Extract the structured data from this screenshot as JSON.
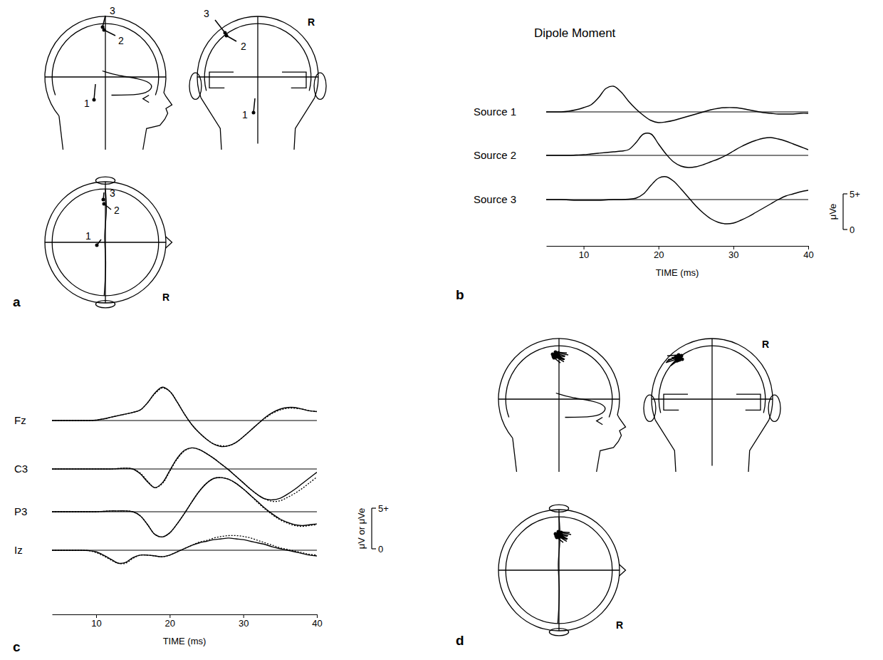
{
  "chart_data": [
    {
      "type": "line",
      "panel_label": "b",
      "title": "Dipole Moment",
      "x_label": "TIME (ms)",
      "x": [
        5,
        6,
        7,
        8,
        9,
        10,
        11,
        12,
        13,
        14,
        15,
        16,
        17,
        18,
        19,
        20,
        21,
        22,
        23,
        24,
        25,
        26,
        27,
        28,
        29,
        30,
        31,
        32,
        33,
        34,
        35,
        36,
        37,
        38,
        39,
        40
      ],
      "xlim": [
        5,
        40
      ],
      "xticks": [
        10,
        20,
        30,
        40
      ],
      "scale_bar": {
        "label": "μVe",
        "ticks": [
          0,
          {
            "value": 5,
            "label": "5+"
          }
        ]
      },
      "series": [
        {
          "name": "Source 1",
          "values": [
            0,
            0,
            0,
            0.1,
            0.3,
            0.6,
            1.0,
            2.0,
            3.3,
            3.6,
            2.8,
            1.5,
            0.4,
            -0.5,
            -1.2,
            -1.5,
            -1.4,
            -1.2,
            -0.9,
            -0.6,
            -0.3,
            0,
            0.3,
            0.5,
            0.6,
            0.6,
            0.5,
            0.3,
            0.1,
            -0.1,
            -0.2,
            -0.3,
            -0.3,
            -0.3,
            -0.2,
            -0.2
          ]
        },
        {
          "name": "Source 2",
          "values": [
            0,
            0,
            0,
            0,
            0.05,
            0.1,
            0.2,
            0.3,
            0.4,
            0.5,
            0.6,
            0.8,
            1.8,
            3.0,
            3.0,
            1.6,
            0.2,
            -0.9,
            -1.5,
            -1.7,
            -1.6,
            -1.3,
            -0.9,
            -0.5,
            0,
            0.6,
            1.2,
            1.7,
            2.1,
            2.4,
            2.5,
            2.3,
            2.0,
            1.6,
            1.2,
            0.8
          ]
        },
        {
          "name": "Source 3",
          "values": [
            0,
            0,
            0,
            -0.05,
            -0.1,
            -0.1,
            -0.1,
            -0.1,
            -0.05,
            0,
            0,
            0.05,
            0.2,
            0.8,
            2.0,
            3.0,
            3.2,
            2.6,
            1.5,
            0.3,
            -0.9,
            -1.9,
            -2.7,
            -3.2,
            -3.4,
            -3.3,
            -2.9,
            -2.4,
            -1.8,
            -1.2,
            -0.6,
            0,
            0.5,
            0.8,
            1.1,
            1.3
          ]
        }
      ]
    },
    {
      "type": "line",
      "panel_label": "c",
      "x_label": "TIME (ms)",
      "x": [
        4,
        5,
        6,
        7,
        8,
        9,
        10,
        11,
        12,
        13,
        14,
        15,
        16,
        17,
        18,
        19,
        20,
        21,
        22,
        23,
        24,
        25,
        26,
        27,
        28,
        29,
        30,
        31,
        32,
        33,
        34,
        35,
        36,
        37,
        38,
        39,
        40
      ],
      "xlim": [
        4,
        40
      ],
      "xticks": [
        10,
        20,
        30,
        40
      ],
      "scale_bar": {
        "label": "μV or μVe",
        "ticks": [
          0,
          {
            "value": 5,
            "label": "5+"
          }
        ]
      },
      "series": [
        {
          "name": "Fz",
          "values": [
            0,
            0,
            0,
            0,
            0,
            0,
            0.05,
            0.2,
            0.4,
            0.6,
            0.8,
            1.0,
            1.3,
            2.2,
            3.4,
            4.1,
            3.6,
            2.3,
            0.8,
            -0.5,
            -1.5,
            -2.3,
            -2.9,
            -3.2,
            -3.1,
            -2.7,
            -2.0,
            -1.2,
            -0.4,
            0.4,
            1.0,
            1.4,
            1.6,
            1.6,
            1.4,
            1.2,
            1.1
          ],
          "fit_values": [
            0,
            0,
            0,
            0,
            0,
            0,
            0.05,
            0.2,
            0.4,
            0.6,
            0.8,
            1.0,
            1.3,
            2.2,
            3.3,
            4.0,
            3.6,
            2.3,
            0.8,
            -0.5,
            -1.5,
            -2.3,
            -2.9,
            -3.1,
            -3.1,
            -2.7,
            -2.0,
            -1.2,
            -0.4,
            0.3,
            0.9,
            1.3,
            1.5,
            1.5,
            1.4,
            1.2,
            1.1
          ]
        },
        {
          "name": "C3",
          "values": [
            0,
            0,
            0,
            0,
            0,
            0,
            0,
            0,
            0,
            0.05,
            0.1,
            0,
            -0.6,
            -1.6,
            -2.3,
            -1.7,
            -0.2,
            1.3,
            2.3,
            2.6,
            2.4,
            1.9,
            1.3,
            0.6,
            -0.1,
            -0.9,
            -1.7,
            -2.5,
            -3.2,
            -3.7,
            -3.8,
            -3.6,
            -3.1,
            -2.5,
            -1.8,
            -1.1,
            -0.4
          ],
          "fit_values": [
            0,
            0,
            0,
            0,
            0,
            0,
            0,
            0,
            0,
            0.05,
            0.1,
            0,
            -0.5,
            -1.5,
            -2.3,
            -1.8,
            -0.3,
            1.2,
            2.2,
            2.6,
            2.4,
            1.9,
            1.3,
            0.6,
            -0.1,
            -0.9,
            -1.7,
            -2.5,
            -3.2,
            -3.7,
            -4.0,
            -3.9,
            -3.5,
            -3.0,
            -2.4,
            -1.7,
            -1.0
          ]
        },
        {
          "name": "P3",
          "values": [
            0,
            0,
            0,
            0,
            0,
            0,
            0,
            0.05,
            0.1,
            0.1,
            0.1,
            0,
            -0.5,
            -1.6,
            -2.8,
            -3.1,
            -2.6,
            -1.5,
            -0.2,
            1.2,
            2.5,
            3.5,
            4.1,
            4.2,
            4.0,
            3.5,
            2.8,
            2.0,
            1.2,
            0.4,
            -0.3,
            -0.9,
            -1.3,
            -1.6,
            -1.7,
            -1.6,
            -1.5
          ],
          "fit_values": [
            0,
            0,
            0,
            0,
            0,
            0,
            0,
            0.05,
            0.1,
            0.1,
            0.1,
            0,
            -0.5,
            -1.6,
            -2.8,
            -3.1,
            -2.6,
            -1.5,
            -0.2,
            1.2,
            2.5,
            3.5,
            4.1,
            4.2,
            4.0,
            3.5,
            2.8,
            2.0,
            1.1,
            0.3,
            -0.4,
            -1.0,
            -1.4,
            -1.7,
            -1.8,
            -1.7,
            -1.6
          ]
        },
        {
          "name": "Iz",
          "values": [
            0,
            0,
            0,
            0,
            0,
            -0.05,
            -0.2,
            -0.6,
            -1.1,
            -1.6,
            -1.5,
            -0.9,
            -0.6,
            -0.6,
            -0.7,
            -0.8,
            -0.6,
            -0.2,
            0.2,
            0.6,
            0.9,
            1.1,
            1.3,
            1.4,
            1.5,
            1.4,
            1.3,
            1.1,
            0.9,
            0.7,
            0.4,
            0.2,
            0,
            -0.2,
            -0.4,
            -0.6,
            -0.7
          ],
          "fit_values": [
            0,
            0,
            0,
            0,
            0,
            -0.05,
            -0.3,
            -0.7,
            -1.2,
            -1.6,
            -1.6,
            -1.0,
            -0.6,
            -0.6,
            -0.7,
            -0.8,
            -0.6,
            -0.2,
            0.2,
            0.6,
            1.0,
            1.2,
            1.5,
            1.7,
            1.8,
            1.8,
            1.7,
            1.5,
            1.2,
            0.9,
            0.6,
            0.3,
            0.1,
            -0.1,
            -0.3,
            -0.5,
            -0.6
          ]
        }
      ]
    }
  ],
  "head_diagrams": [
    {
      "panel_label": "a",
      "side_labels": [
        "R",
        "R"
      ],
      "dipole_labels": [
        "1",
        "2",
        "3"
      ]
    },
    {
      "panel_label": "d",
      "side_labels": [
        "R",
        "R"
      ]
    }
  ]
}
